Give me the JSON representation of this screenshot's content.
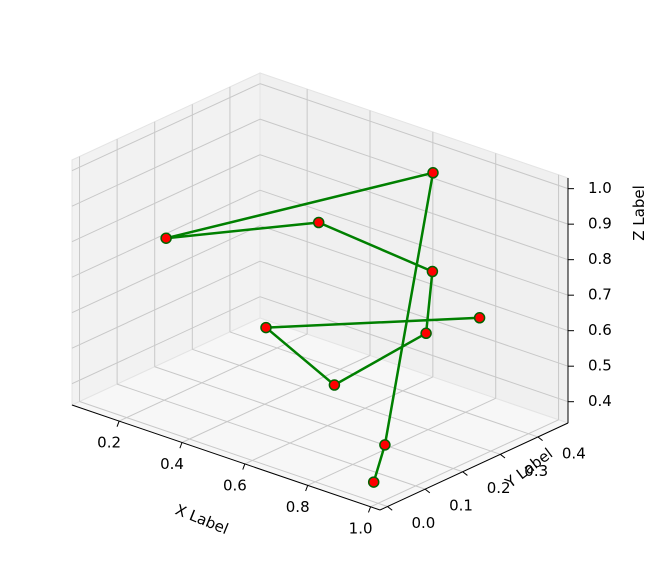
{
  "chart_data": {
    "type": "line3d",
    "xlabel": "X Label",
    "ylabel": "Y Label",
    "zlabel": "Z Label",
    "xlim": [
      0.05,
      1.03
    ],
    "ylim": [
      -0.02,
      0.48
    ],
    "zlim": [
      0.34,
      1.03
    ],
    "xticks": [
      "0.2",
      "0.4",
      "0.6",
      "0.8",
      "1.0"
    ],
    "yticks": [
      "0.0",
      "0.1",
      "0.2",
      "0.3",
      "0.4"
    ],
    "zticks": [
      "0.4",
      "0.5",
      "0.6",
      "0.7",
      "0.8",
      "0.9",
      "1.0"
    ],
    "grid": true,
    "marker": "circle",
    "colors": {
      "line": "#008000",
      "marker_face": "#ff0000",
      "marker_edge": "#006400",
      "pane_left": "#f2f2f2",
      "pane_back": "#f0f0f0",
      "pane_floor": "#f7f7f7",
      "grid": "#c8c8c8"
    },
    "series": [
      {
        "points": [
          {
            "x": 0.95,
            "y": 0.03,
            "z": 0.37
          },
          {
            "x": 0.95,
            "y": 0.06,
            "z": 0.46
          },
          {
            "x": 0.72,
            "y": 0.38,
            "z": 1.0
          },
          {
            "x": 0.11,
            "y": 0.18,
            "z": 0.73
          },
          {
            "x": 0.44,
            "y": 0.31,
            "z": 0.81
          },
          {
            "x": 0.73,
            "y": 0.37,
            "z": 0.73
          },
          {
            "x": 0.71,
            "y": 0.37,
            "z": 0.55
          },
          {
            "x": 0.55,
            "y": 0.26,
            "z": 0.41
          },
          {
            "x": 0.38,
            "y": 0.22,
            "z": 0.54
          },
          {
            "x": 1.0,
            "y": 0.27,
            "z": 0.73
          }
        ]
      }
    ]
  }
}
